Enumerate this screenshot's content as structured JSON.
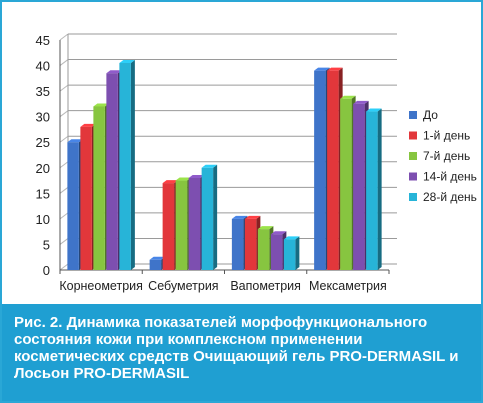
{
  "chart_data": {
    "type": "bar",
    "categories": [
      "Корнеометрия",
      "Себуметрия",
      "Вапометрия",
      "Мексаметрия"
    ],
    "series": [
      {
        "name": "До",
        "values": [
          25,
          2,
          10,
          39
        ],
        "color": "#3f74c9"
      },
      {
        "name": "1-й день",
        "values": [
          28,
          17,
          10,
          39
        ],
        "color": "#e2373b"
      },
      {
        "name": "7-й день",
        "values": [
          32,
          17.5,
          8,
          33.5
        ],
        "color": "#87c540"
      },
      {
        "name": "14-й день",
        "values": [
          38.5,
          18,
          7,
          32.5
        ],
        "color": "#7d4fb0"
      },
      {
        "name": "28-й день",
        "values": [
          40.5,
          20,
          6,
          31
        ],
        "color": "#27b4d8"
      }
    ],
    "ylim": [
      0,
      45
    ],
    "yticks": [
      0,
      5,
      10,
      15,
      20,
      25,
      30,
      35,
      40,
      45
    ],
    "grid": true,
    "legend": "right",
    "title": "",
    "xlabel": "",
    "ylabel": ""
  },
  "caption": {
    "label": "Рис. 2.",
    "text": "Динамика показателей морфофункционального состояния кожи при комплексном применении косметических средств Очищающий гель PRO-DERMASIL и Лосьон PRO-DERMASIL"
  }
}
